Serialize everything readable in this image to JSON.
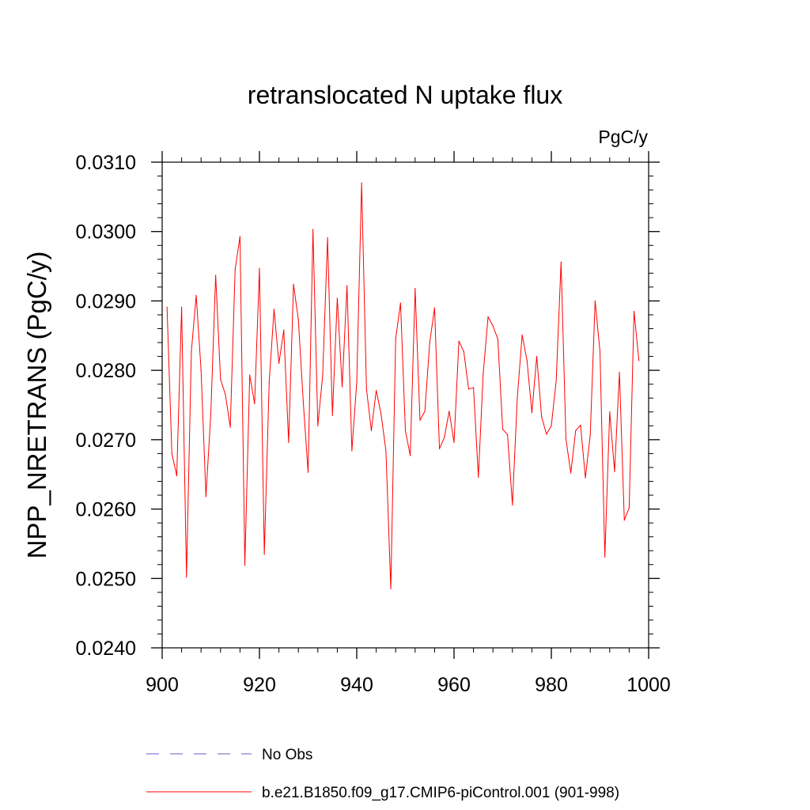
{
  "chart_data": {
    "type": "line",
    "title": "retranslocated N uptake flux",
    "units_label": "PgC/y",
    "xlabel": "",
    "ylabel": "NPP_NRETRANS  (PgC/y)",
    "xlim": [
      900,
      1000
    ],
    "ylim": [
      0.024,
      0.031
    ],
    "x_ticks": [
      900,
      920,
      940,
      960,
      980,
      1000
    ],
    "x_tick_labels": [
      "900",
      "920",
      "940",
      "960",
      "980",
      "1000"
    ],
    "y_ticks": [
      0.024,
      0.025,
      0.026,
      0.027,
      0.028,
      0.029,
      0.03,
      0.031
    ],
    "y_tick_labels": [
      "0.0240",
      "0.0250",
      "0.0260",
      "0.0270",
      "0.0280",
      "0.0290",
      "0.0300",
      "0.0310"
    ],
    "legend_position": "bottom",
    "series": [
      {
        "name": "No Obs",
        "color": "#6a5acd",
        "style": "dashed",
        "x": [],
        "values": []
      },
      {
        "name": "b.e21.B1850.f09_g17.CMIP6-piControl.001 (901-998)",
        "color": "#ff0000",
        "style": "solid",
        "x": [
          901,
          902,
          903,
          904,
          905,
          906,
          907,
          908,
          909,
          910,
          911,
          912,
          913,
          914,
          915,
          916,
          917,
          918,
          919,
          920,
          921,
          922,
          923,
          924,
          925,
          926,
          927,
          928,
          929,
          930,
          931,
          932,
          933,
          934,
          935,
          936,
          937,
          938,
          939,
          940,
          941,
          942,
          943,
          944,
          945,
          946,
          947,
          948,
          949,
          950,
          951,
          952,
          953,
          954,
          955,
          956,
          957,
          958,
          959,
          960,
          961,
          962,
          963,
          964,
          965,
          966,
          967,
          968,
          969,
          970,
          971,
          972,
          973,
          974,
          975,
          976,
          977,
          978,
          979,
          980,
          981,
          982,
          983,
          984,
          985,
          986,
          987,
          988,
          989,
          990,
          991,
          992,
          993,
          994,
          995,
          996,
          997,
          998
        ],
        "values": [
          0.02891,
          0.0268,
          0.02648,
          0.02891,
          0.02502,
          0.02827,
          0.02908,
          0.028,
          0.02618,
          0.02737,
          0.02937,
          0.02787,
          0.02765,
          0.02718,
          0.02945,
          0.02993,
          0.02519,
          0.02793,
          0.02752,
          0.02947,
          0.02535,
          0.02783,
          0.02888,
          0.0281,
          0.02858,
          0.02696,
          0.02924,
          0.02873,
          0.02755,
          0.02653,
          0.03003,
          0.0272,
          0.02793,
          0.02991,
          0.02735,
          0.02904,
          0.02776,
          0.02922,
          0.02684,
          0.02783,
          0.0307,
          0.02773,
          0.02713,
          0.02771,
          0.02737,
          0.02684,
          0.02485,
          0.02845,
          0.02897,
          0.02713,
          0.02677,
          0.02918,
          0.02728,
          0.02741,
          0.0284,
          0.0289,
          0.02687,
          0.02703,
          0.02741,
          0.02696,
          0.02842,
          0.02827,
          0.02773,
          0.02775,
          0.02646,
          0.02796,
          0.02877,
          0.02864,
          0.02845,
          0.02715,
          0.02707,
          0.02606,
          0.0276,
          0.02851,
          0.02814,
          0.02739,
          0.0282,
          0.02733,
          0.02708,
          0.0272,
          0.02785,
          0.02956,
          0.02701,
          0.02652,
          0.02713,
          0.02721,
          0.02645,
          0.02707,
          0.029,
          0.02827,
          0.02531,
          0.0274,
          0.02654,
          0.02797,
          0.02584,
          0.02602,
          0.02885,
          0.02814
        ]
      }
    ]
  }
}
